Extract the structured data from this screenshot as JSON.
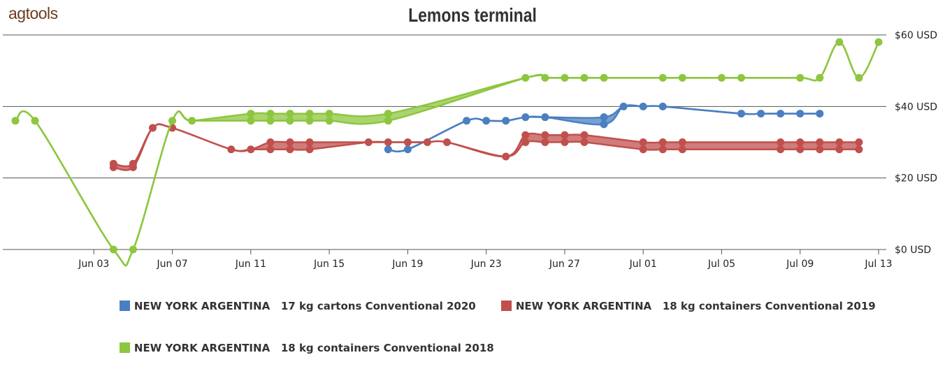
{
  "logo": "agtools",
  "chart_data": {
    "type": "line",
    "title": "Lemons terminal",
    "xlabel": "",
    "ylabel": "",
    "x_ticks": [
      "Jun 03",
      "Jun 07",
      "Jun 11",
      "Jun 15",
      "Jun 19",
      "Jun 23",
      "Jun 27",
      "Jul 01",
      "Jul 05",
      "Jul 09",
      "Jul 13"
    ],
    "y_ticks": [
      "$0 USD",
      "$20 USD",
      "$40 USD",
      "$60 USD"
    ],
    "ylim": [
      0,
      60
    ],
    "xlim": [
      "2019-05-30",
      "2019-07-13"
    ],
    "grid": "horizontal",
    "legend_position": "bottom",
    "series": [
      {
        "name": "NEW YORK ARGENTINA   17 kg cartons Conventional 2020",
        "color": "#4a7fc1",
        "points": [
          [
            "2019-06-18",
            28,
            28
          ],
          [
            "2019-06-19",
            28,
            28
          ],
          [
            "2019-06-22",
            36,
            36
          ],
          [
            "2019-06-23",
            36,
            36
          ],
          [
            "2019-06-24",
            36,
            36
          ],
          [
            "2019-06-25",
            37,
            37
          ],
          [
            "2019-06-26",
            37,
            37
          ],
          [
            "2019-06-29",
            35,
            37
          ],
          [
            "2019-06-30",
            40,
            40
          ],
          [
            "2019-07-01",
            40,
            40
          ],
          [
            "2019-07-02",
            40,
            40
          ],
          [
            "2019-07-06",
            38,
            38
          ],
          [
            "2019-07-07",
            38,
            38
          ],
          [
            "2019-07-08",
            38,
            38
          ],
          [
            "2019-07-09",
            38,
            38
          ],
          [
            "2019-07-10",
            38,
            38
          ]
        ]
      },
      {
        "name": "NEW YORK ARGENTINA   18 kg containers Conventional 2019",
        "color": "#c0504d",
        "points": [
          [
            "2019-06-04",
            23,
            24
          ],
          [
            "2019-06-05",
            23,
            24
          ],
          [
            "2019-06-06",
            34,
            34
          ],
          [
            "2019-06-07",
            34,
            34
          ],
          [
            "2019-06-10",
            28,
            28
          ],
          [
            "2019-06-11",
            28,
            28
          ],
          [
            "2019-06-12",
            28,
            30
          ],
          [
            "2019-06-13",
            28,
            30
          ],
          [
            "2019-06-14",
            28,
            30
          ],
          [
            "2019-06-17",
            30,
            30
          ],
          [
            "2019-06-18",
            30,
            30
          ],
          [
            "2019-06-19",
            30,
            30
          ],
          [
            "2019-06-20",
            30,
            30
          ],
          [
            "2019-06-21",
            30,
            30
          ],
          [
            "2019-06-24",
            26,
            26
          ],
          [
            "2019-06-25",
            30,
            32
          ],
          [
            "2019-06-26",
            30,
            32
          ],
          [
            "2019-06-27",
            30,
            32
          ],
          [
            "2019-06-28",
            30,
            32
          ],
          [
            "2019-07-01",
            28,
            30
          ],
          [
            "2019-07-02",
            28,
            30
          ],
          [
            "2019-07-03",
            28,
            30
          ],
          [
            "2019-07-08",
            28,
            30
          ],
          [
            "2019-07-09",
            28,
            30
          ],
          [
            "2019-07-10",
            28,
            30
          ],
          [
            "2019-07-11",
            28,
            30
          ],
          [
            "2019-07-12",
            28,
            30
          ]
        ]
      },
      {
        "name": "NEW YORK ARGENTINA   18 kg containers Conventional 2018",
        "color": "#8dc63f",
        "points": [
          [
            "2019-05-30",
            36,
            36
          ],
          [
            "2019-05-31",
            36,
            36
          ],
          [
            "2019-06-04",
            0,
            0
          ],
          [
            "2019-06-05",
            0,
            0
          ],
          [
            "2019-06-07",
            36,
            36
          ],
          [
            "2019-06-08",
            36,
            36
          ],
          [
            "2019-06-11",
            36,
            38
          ],
          [
            "2019-06-12",
            36,
            38
          ],
          [
            "2019-06-13",
            36,
            38
          ],
          [
            "2019-06-14",
            36,
            38
          ],
          [
            "2019-06-15",
            36,
            38
          ],
          [
            "2019-06-18",
            36,
            38
          ],
          [
            "2019-06-25",
            48,
            48
          ],
          [
            "2019-06-26",
            48,
            48
          ],
          [
            "2019-06-27",
            48,
            48
          ],
          [
            "2019-06-28",
            48,
            48
          ],
          [
            "2019-06-29",
            48,
            48
          ],
          [
            "2019-07-02",
            48,
            48
          ],
          [
            "2019-07-03",
            48,
            48
          ],
          [
            "2019-07-05",
            48,
            48
          ],
          [
            "2019-07-06",
            48,
            48
          ],
          [
            "2019-07-09",
            48,
            48
          ],
          [
            "2019-07-10",
            48,
            48
          ],
          [
            "2019-07-11",
            58,
            58
          ],
          [
            "2019-07-12",
            48,
            48
          ],
          [
            "2019-07-13",
            58,
            58
          ]
        ]
      }
    ]
  }
}
